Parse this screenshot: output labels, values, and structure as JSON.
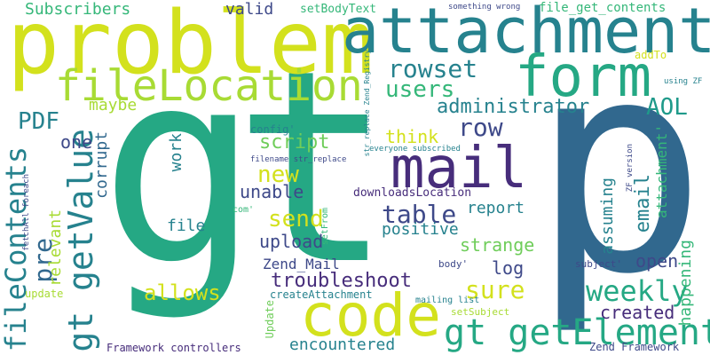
{
  "palette": {
    "yellow": "#d3e11d",
    "lime": "#a8db34",
    "light_green": "#6fcd5a",
    "green": "#35b779",
    "teal_green": "#25a884",
    "teal": "#1f9a8a",
    "blue_teal": "#26828e",
    "steel": "#31688e",
    "indigo": "#3e4989",
    "purple": "#472d7b",
    "dark": "#440154"
  },
  "words": [
    {
      "text": "gt",
      "color": "teal_green"
    },
    {
      "text": "p",
      "color": "steel"
    },
    {
      "text": "problem",
      "color": "yellow"
    },
    {
      "text": "attachment",
      "color": "blue_teal"
    },
    {
      "text": "form",
      "color": "teal_green"
    },
    {
      "text": "fileLocation",
      "color": "lime"
    },
    {
      "text": "code",
      "color": "yellow"
    },
    {
      "text": "mail",
      "color": "purple"
    },
    {
      "text": "gt getElement",
      "color": "teal_green"
    },
    {
      "text": "gt getValue",
      "color": "blue_teal"
    },
    {
      "text": "fileContents",
      "color": "blue_teal"
    },
    {
      "text": "weekly",
      "color": "teal_green"
    },
    {
      "text": "rowset",
      "color": "blue_teal"
    },
    {
      "text": "users",
      "color": "green"
    },
    {
      "text": "row",
      "color": "indigo"
    },
    {
      "text": "AOL",
      "color": "teal"
    },
    {
      "text": "table",
      "color": "indigo"
    },
    {
      "text": "send",
      "color": "yellow"
    },
    {
      "text": "new",
      "color": "yellow"
    },
    {
      "text": "sure",
      "color": "yellow"
    },
    {
      "text": "administrator",
      "color": "blue_teal"
    },
    {
      "text": "PDF",
      "color": "blue_teal"
    },
    {
      "text": "pre",
      "color": "steel"
    },
    {
      "text": "troubleshoot",
      "color": "purple"
    },
    {
      "text": "allows",
      "color": "yellow"
    },
    {
      "text": "Subscribers",
      "color": "green"
    },
    {
      "text": "valid",
      "color": "indigo"
    },
    {
      "text": "setBodyText",
      "color": "green"
    },
    {
      "text": "something wrong",
      "color": "indigo"
    },
    {
      "text": "file_get_contents",
      "color": "green"
    },
    {
      "text": "maybe",
      "color": "lime"
    },
    {
      "text": "one",
      "color": "indigo"
    },
    {
      "text": "corrupt",
      "color": "steel"
    },
    {
      "text": "relevant",
      "color": "lime"
    },
    {
      "text": "work",
      "color": "blue_teal"
    },
    {
      "text": "script",
      "color": "light_green"
    },
    {
      "text": "think",
      "color": "yellow"
    },
    {
      "text": "unable",
      "color": "indigo"
    },
    {
      "text": "report",
      "color": "blue_teal"
    },
    {
      "text": "email",
      "color": "blue_teal"
    },
    {
      "text": "assuming",
      "color": "blue_teal"
    },
    {
      "text": "attachment'",
      "color": "green"
    },
    {
      "text": "happening",
      "color": "green"
    },
    {
      "text": "file",
      "color": "blue_teal"
    },
    {
      "text": "upload",
      "color": "indigo"
    },
    {
      "text": "positive",
      "color": "blue_teal"
    },
    {
      "text": "strange",
      "color": "light_green"
    },
    {
      "text": "log",
      "color": "indigo"
    },
    {
      "text": "open",
      "color": "indigo"
    },
    {
      "text": "created",
      "color": "purple"
    },
    {
      "text": "Zend_Mail",
      "color": "indigo"
    },
    {
      "text": "encountered",
      "color": "blue_teal"
    },
    {
      "text": "config'",
      "color": "blue_teal"
    },
    {
      "text": "downloadsLocation",
      "color": "purple"
    },
    {
      "text": "filename str_replace",
      "color": "indigo"
    },
    {
      "text": "everyone subscribed",
      "color": "blue_teal"
    },
    {
      "text": "str_replace Zend_Registry",
      "color": "blue_teal"
    },
    {
      "text": "ZF version",
      "color": "indigo"
    },
    {
      "text": "addTo",
      "color": "yellow"
    },
    {
      "text": "using ZF",
      "color": "blue_teal"
    },
    {
      "text": "com'",
      "color": "green"
    },
    {
      "text": "setFrom",
      "color": "green"
    },
    {
      "text": "fetchAll foreach",
      "color": "indigo"
    },
    {
      "text": "update",
      "color": "lime"
    },
    {
      "text": "createAttachment",
      "color": "blue_teal"
    },
    {
      "text": "mailing list",
      "color": "blue_teal"
    },
    {
      "text": "body'",
      "color": "indigo"
    },
    {
      "text": "subject'",
      "color": "indigo"
    },
    {
      "text": "setSubject",
      "color": "lime"
    },
    {
      "text": "Update",
      "color": "light_green"
    },
    {
      "text": "Framework controllers",
      "color": "purple"
    },
    {
      "text": "Zend Framework",
      "color": "indigo"
    }
  ]
}
